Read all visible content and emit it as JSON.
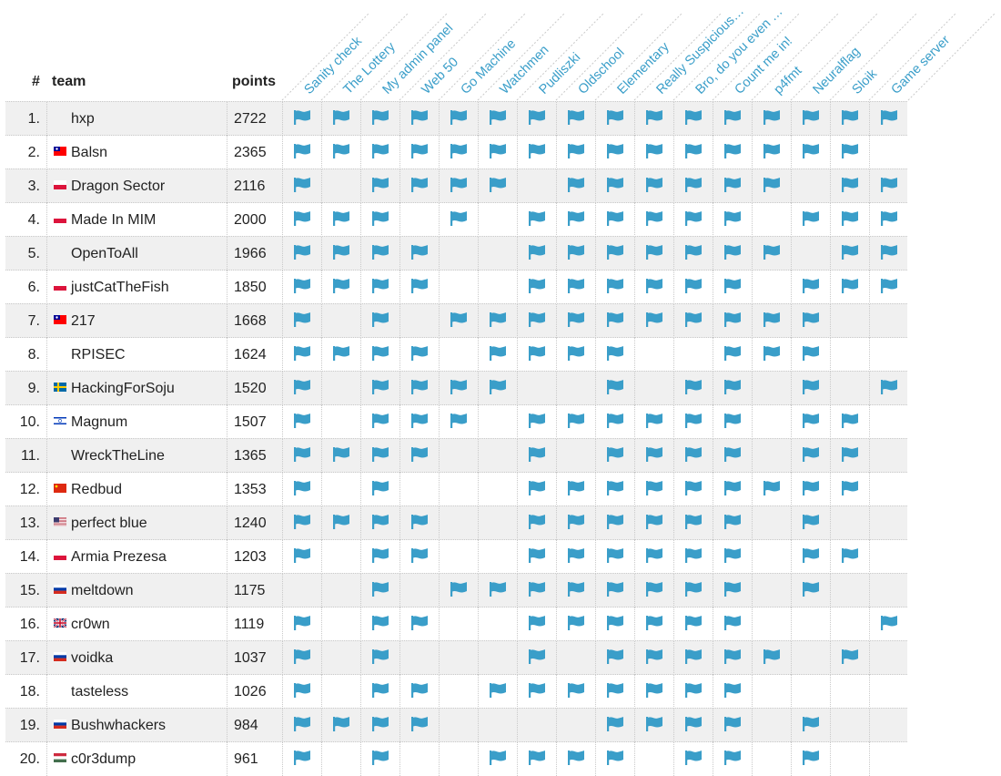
{
  "header": {
    "rank_label": "#",
    "team_label": "team",
    "points_label": "points"
  },
  "tasks": [
    "Sanity check",
    "The Lottery",
    "My admin panel",
    "Web 50",
    "Go Machine",
    "Watchmen",
    "Pudliszki",
    "Oldschool",
    "Elementary",
    "Really Suspicious…",
    "Bro, do you even …",
    "Count me in!",
    "p4fmt",
    "Neuralflag",
    "Sloik",
    "Game server"
  ],
  "colors": {
    "flag": "#3a9ec9",
    "row_alt": "#f0f0f0",
    "label": "#3a9ec9"
  },
  "icons": {
    "solve": "flag-icon"
  },
  "teams": [
    {
      "rank": "1.",
      "name": "hxp",
      "country": "",
      "points": "2722",
      "solves": [
        1,
        1,
        1,
        1,
        1,
        1,
        1,
        1,
        1,
        1,
        1,
        1,
        1,
        1,
        1,
        1
      ]
    },
    {
      "rank": "2.",
      "name": "Balsn",
      "country": "tw",
      "points": "2365",
      "solves": [
        1,
        1,
        1,
        1,
        1,
        1,
        1,
        1,
        1,
        1,
        1,
        1,
        1,
        1,
        1,
        0
      ]
    },
    {
      "rank": "3.",
      "name": "Dragon Sector",
      "country": "pl",
      "points": "2116",
      "solves": [
        1,
        0,
        1,
        1,
        1,
        1,
        0,
        1,
        1,
        1,
        1,
        1,
        1,
        0,
        1,
        1
      ]
    },
    {
      "rank": "4.",
      "name": "Made In MIM",
      "country": "pl",
      "points": "2000",
      "solves": [
        1,
        1,
        1,
        0,
        1,
        0,
        1,
        1,
        1,
        1,
        1,
        1,
        0,
        1,
        1,
        1
      ]
    },
    {
      "rank": "5.",
      "name": "OpenToAll",
      "country": "",
      "points": "1966",
      "solves": [
        1,
        1,
        1,
        1,
        0,
        0,
        1,
        1,
        1,
        1,
        1,
        1,
        1,
        0,
        1,
        1
      ]
    },
    {
      "rank": "6.",
      "name": "justCatTheFish",
      "country": "pl",
      "points": "1850",
      "solves": [
        1,
        1,
        1,
        1,
        0,
        0,
        1,
        1,
        1,
        1,
        1,
        1,
        0,
        1,
        1,
        1
      ]
    },
    {
      "rank": "7.",
      "name": "217",
      "country": "tw",
      "points": "1668",
      "solves": [
        1,
        0,
        1,
        0,
        1,
        1,
        1,
        1,
        1,
        1,
        1,
        1,
        1,
        1,
        0,
        0
      ]
    },
    {
      "rank": "8.",
      "name": "RPISEC",
      "country": "",
      "points": "1624",
      "solves": [
        1,
        1,
        1,
        1,
        0,
        1,
        1,
        1,
        1,
        0,
        0,
        1,
        1,
        1,
        0,
        0
      ]
    },
    {
      "rank": "9.",
      "name": "HackingForSoju",
      "country": "se",
      "points": "1520",
      "solves": [
        1,
        0,
        1,
        1,
        1,
        1,
        0,
        0,
        1,
        0,
        1,
        1,
        0,
        1,
        0,
        1
      ]
    },
    {
      "rank": "10.",
      "name": "Magnum",
      "country": "il",
      "points": "1507",
      "solves": [
        1,
        0,
        1,
        1,
        1,
        0,
        1,
        1,
        1,
        1,
        1,
        1,
        0,
        1,
        1,
        0
      ]
    },
    {
      "rank": "11.",
      "name": "WreckTheLine",
      "country": "",
      "points": "1365",
      "solves": [
        1,
        1,
        1,
        1,
        0,
        0,
        1,
        0,
        1,
        1,
        1,
        1,
        0,
        1,
        1,
        0
      ]
    },
    {
      "rank": "12.",
      "name": "Redbud",
      "country": "cn",
      "points": "1353",
      "solves": [
        1,
        0,
        1,
        0,
        0,
        0,
        1,
        1,
        1,
        1,
        1,
        1,
        1,
        1,
        1,
        0
      ]
    },
    {
      "rank": "13.",
      "name": "perfect blue",
      "country": "us",
      "points": "1240",
      "solves": [
        1,
        1,
        1,
        1,
        0,
        0,
        1,
        1,
        1,
        1,
        1,
        1,
        0,
        1,
        0,
        0
      ]
    },
    {
      "rank": "14.",
      "name": "Armia Prezesa",
      "country": "pl",
      "points": "1203",
      "solves": [
        1,
        0,
        1,
        1,
        0,
        0,
        1,
        1,
        1,
        1,
        1,
        1,
        0,
        1,
        1,
        0
      ]
    },
    {
      "rank": "15.",
      "name": "meltdown",
      "country": "ru",
      "points": "1175",
      "solves": [
        0,
        0,
        1,
        0,
        1,
        1,
        1,
        1,
        1,
        1,
        1,
        1,
        0,
        1,
        0,
        0
      ]
    },
    {
      "rank": "16.",
      "name": "cr0wn",
      "country": "gb",
      "points": "1119",
      "solves": [
        1,
        0,
        1,
        1,
        0,
        0,
        1,
        1,
        1,
        1,
        1,
        1,
        0,
        0,
        0,
        1
      ]
    },
    {
      "rank": "17.",
      "name": "voidka",
      "country": "ru",
      "points": "1037",
      "solves": [
        1,
        0,
        1,
        0,
        0,
        0,
        1,
        0,
        1,
        1,
        1,
        1,
        1,
        0,
        1,
        0
      ]
    },
    {
      "rank": "18.",
      "name": "tasteless",
      "country": "",
      "points": "1026",
      "solves": [
        1,
        0,
        1,
        1,
        0,
        1,
        1,
        1,
        1,
        1,
        1,
        1,
        0,
        0,
        0,
        0
      ]
    },
    {
      "rank": "19.",
      "name": "Bushwhackers",
      "country": "ru",
      "points": "984",
      "solves": [
        1,
        1,
        1,
        1,
        0,
        0,
        0,
        0,
        1,
        1,
        1,
        1,
        0,
        1,
        0,
        0
      ]
    },
    {
      "rank": "20.",
      "name": "c0r3dump",
      "country": "hu",
      "points": "961",
      "solves": [
        1,
        0,
        1,
        0,
        0,
        1,
        1,
        1,
        1,
        0,
        1,
        1,
        0,
        1,
        0,
        0
      ]
    }
  ]
}
